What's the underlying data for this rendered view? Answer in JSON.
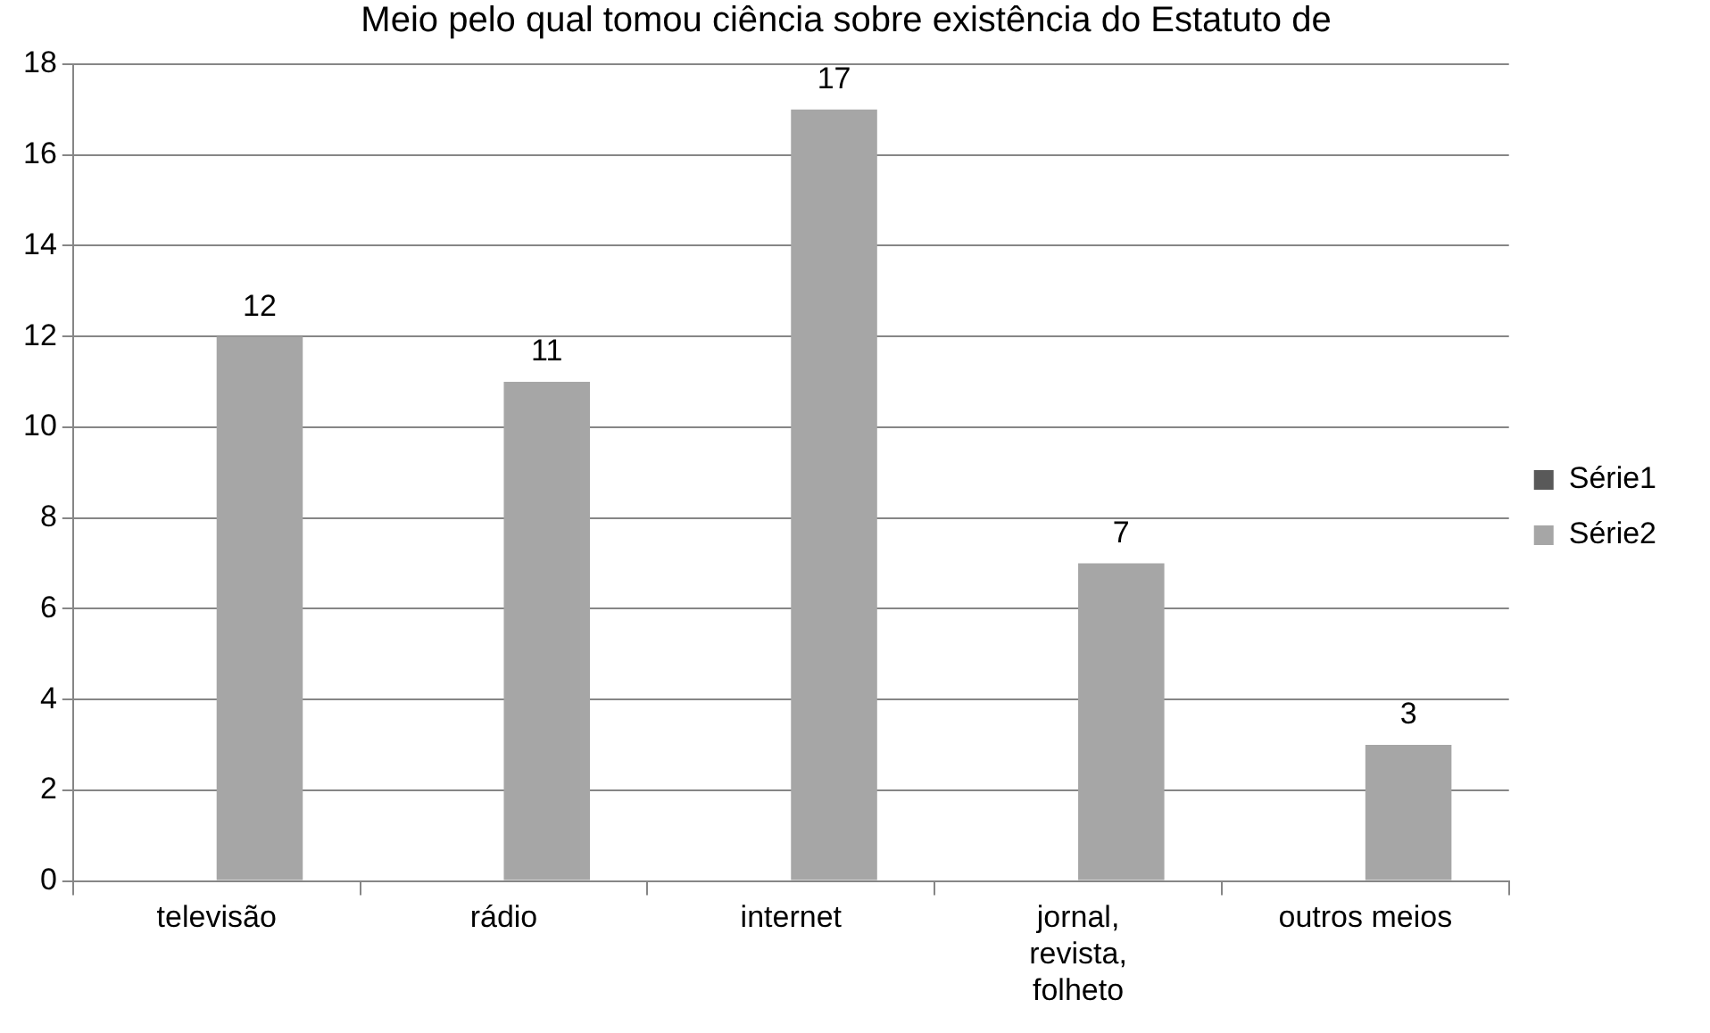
{
  "chart_data": {
    "type": "bar",
    "title": "Meio pelo qual tomou ciência sobre existência do Estatuto de",
    "categories": [
      "televisão",
      "rádio",
      "internet",
      "jornal, revista, folheto",
      "outros meios"
    ],
    "series": [
      {
        "name": "Série1",
        "color": "#595959",
        "values": [
          null,
          null,
          null,
          null,
          null
        ]
      },
      {
        "name": "Série2",
        "color": "#a6a6a6",
        "values": [
          12,
          11,
          17,
          7,
          3
        ]
      }
    ],
    "ylim": [
      0,
      18
    ],
    "yticks": [
      0,
      2,
      4,
      6,
      8,
      10,
      12,
      14,
      16,
      18
    ],
    "grid": "y",
    "legend": "right",
    "data_labels": true
  }
}
